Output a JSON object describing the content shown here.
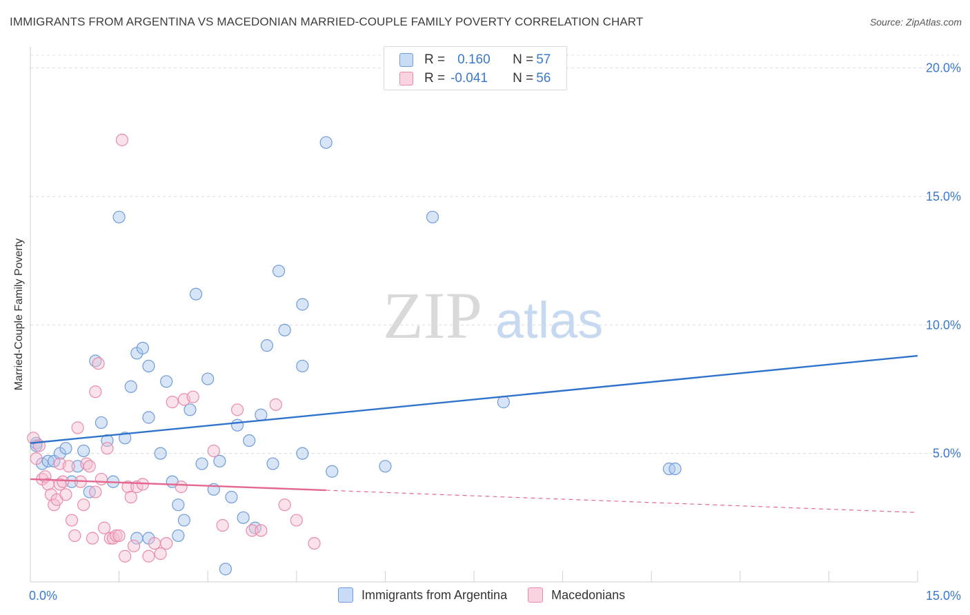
{
  "header": {
    "title": "IMMIGRANTS FROM ARGENTINA VS MACEDONIAN MARRIED-COUPLE FAMILY POVERTY CORRELATION CHART",
    "source": "Source: ZipAtlas.com"
  },
  "legend": {
    "series1": {
      "r_label": "R = ",
      "r_value": "0.160",
      "n_label": "N = ",
      "n_value": "57"
    },
    "series2": {
      "r_label": "R = ",
      "r_value": "-0.041",
      "n_label": "N = ",
      "n_value": "56"
    }
  },
  "watermark": {
    "zip": "ZIP",
    "atlas": "atlas"
  },
  "colors": {
    "blue_fill": "#a9c6ee",
    "blue_stroke": "#6f9bd6",
    "blue_line": "#2f72cc",
    "pink_fill": "#f5bfd1",
    "pink_stroke": "#e98aab",
    "pink_line": "#e3678f",
    "axis_text": "#3a78c9",
    "grid": "#dcdcdc"
  },
  "chart_data": {
    "type": "scatter",
    "title": "IMMIGRANTS FROM ARGENTINA VS MACEDONIAN MARRIED-COUPLE FAMILY POVERTY CORRELATION CHART",
    "xlabel": "",
    "ylabel": "Married-Couple Family Poverty",
    "xlim": [
      0,
      15
    ],
    "ylim": [
      0,
      20.5
    ],
    "x_tick_labels": [
      {
        "value": 0,
        "label": "0.0%"
      },
      {
        "value": 15,
        "label": "15.0%"
      }
    ],
    "y_ticks": [
      {
        "value": 5,
        "label": "5.0%"
      },
      {
        "value": 10,
        "label": "10.0%"
      },
      {
        "value": 15,
        "label": "15.0%"
      },
      {
        "value": 20,
        "label": "20.0%"
      }
    ],
    "x_minor_ticks": [
      0,
      1.5,
      3,
      4.5,
      6,
      7.5,
      9,
      10.5,
      12,
      13.5,
      15
    ],
    "series": [
      {
        "name": "Immigrants from Argentina",
        "color": "#a9c6ee",
        "points": [
          [
            0.1,
            5.4
          ],
          [
            0.1,
            5.3
          ],
          [
            0.2,
            4.6
          ],
          [
            0.3,
            4.7
          ],
          [
            0.4,
            4.7
          ],
          [
            0.5,
            5.0
          ],
          [
            0.6,
            5.2
          ],
          [
            0.7,
            3.9
          ],
          [
            0.8,
            4.5
          ],
          [
            0.9,
            5.1
          ],
          [
            1.0,
            3.5
          ],
          [
            1.1,
            8.6
          ],
          [
            1.2,
            6.2
          ],
          [
            1.3,
            5.5
          ],
          [
            1.4,
            3.9
          ],
          [
            1.5,
            14.2
          ],
          [
            1.6,
            5.6
          ],
          [
            1.7,
            7.6
          ],
          [
            1.8,
            1.7
          ],
          [
            1.8,
            8.9
          ],
          [
            1.9,
            9.1
          ],
          [
            2.0,
            6.4
          ],
          [
            2.0,
            1.7
          ],
          [
            2.0,
            8.4
          ],
          [
            2.2,
            5.0
          ],
          [
            2.3,
            7.8
          ],
          [
            2.4,
            3.9
          ],
          [
            2.5,
            3.0
          ],
          [
            2.5,
            1.8
          ],
          [
            2.6,
            2.4
          ],
          [
            2.7,
            6.7
          ],
          [
            2.8,
            11.2
          ],
          [
            2.9,
            4.6
          ],
          [
            3.0,
            7.9
          ],
          [
            3.1,
            3.6
          ],
          [
            3.2,
            4.7
          ],
          [
            3.3,
            0.5
          ],
          [
            3.4,
            3.3
          ],
          [
            3.5,
            6.1
          ],
          [
            3.6,
            2.5
          ],
          [
            3.7,
            5.5
          ],
          [
            3.8,
            2.1
          ],
          [
            3.9,
            6.5
          ],
          [
            4.0,
            9.2
          ],
          [
            4.1,
            4.6
          ],
          [
            4.2,
            12.1
          ],
          [
            4.3,
            9.8
          ],
          [
            4.6,
            10.8
          ],
          [
            4.6,
            5.0
          ],
          [
            4.6,
            8.4
          ],
          [
            5.0,
            17.1
          ],
          [
            5.1,
            4.3
          ],
          [
            6.0,
            4.5
          ],
          [
            6.8,
            14.2
          ],
          [
            8.0,
            7.0
          ],
          [
            10.8,
            4.4
          ],
          [
            10.9,
            4.4
          ]
        ],
        "trend": {
          "x_start": 0,
          "y_start": 5.4,
          "x_end": 15,
          "y_end": 8.8,
          "solid_until": 15
        }
      },
      {
        "name": "Macedonians",
        "color": "#f5bfd1",
        "points": [
          [
            0.05,
            5.6
          ],
          [
            0.1,
            4.8
          ],
          [
            0.15,
            5.3
          ],
          [
            0.2,
            4.0
          ],
          [
            0.25,
            4.1
          ],
          [
            0.3,
            3.8
          ],
          [
            0.35,
            3.4
          ],
          [
            0.4,
            3.0
          ],
          [
            0.45,
            3.2
          ],
          [
            0.5,
            4.6
          ],
          [
            0.5,
            3.8
          ],
          [
            0.55,
            3.9
          ],
          [
            0.6,
            3.4
          ],
          [
            0.65,
            4.5
          ],
          [
            0.7,
            2.4
          ],
          [
            0.75,
            1.8
          ],
          [
            0.8,
            6.0
          ],
          [
            0.85,
            3.9
          ],
          [
            0.9,
            3.0
          ],
          [
            0.95,
            4.6
          ],
          [
            1.0,
            4.5
          ],
          [
            1.05,
            1.7
          ],
          [
            1.1,
            7.4
          ],
          [
            1.1,
            3.5
          ],
          [
            1.15,
            8.5
          ],
          [
            1.2,
            4.0
          ],
          [
            1.25,
            2.1
          ],
          [
            1.3,
            5.2
          ],
          [
            1.35,
            1.7
          ],
          [
            1.4,
            1.7
          ],
          [
            1.45,
            1.8
          ],
          [
            1.5,
            1.8
          ],
          [
            1.55,
            17.2
          ],
          [
            1.6,
            1.0
          ],
          [
            1.65,
            3.7
          ],
          [
            1.7,
            3.3
          ],
          [
            1.75,
            1.4
          ],
          [
            1.8,
            3.7
          ],
          [
            1.9,
            3.8
          ],
          [
            2.0,
            1.0
          ],
          [
            2.1,
            1.5
          ],
          [
            2.2,
            1.1
          ],
          [
            2.3,
            1.5
          ],
          [
            2.4,
            7.0
          ],
          [
            2.55,
            3.7
          ],
          [
            2.6,
            7.1
          ],
          [
            2.75,
            7.2
          ],
          [
            3.1,
            5.1
          ],
          [
            3.25,
            2.2
          ],
          [
            3.5,
            6.7
          ],
          [
            3.75,
            2.0
          ],
          [
            3.9,
            2.0
          ],
          [
            4.15,
            6.9
          ],
          [
            4.3,
            3.0
          ],
          [
            4.5,
            2.4
          ],
          [
            4.8,
            1.5
          ]
        ],
        "trend": {
          "x_start": 0,
          "y_start": 4.0,
          "x_end": 15,
          "y_end": 2.7,
          "solid_until": 5.0
        }
      }
    ],
    "legend": [
      "Immigrants from Argentina",
      "Macedonians"
    ]
  }
}
